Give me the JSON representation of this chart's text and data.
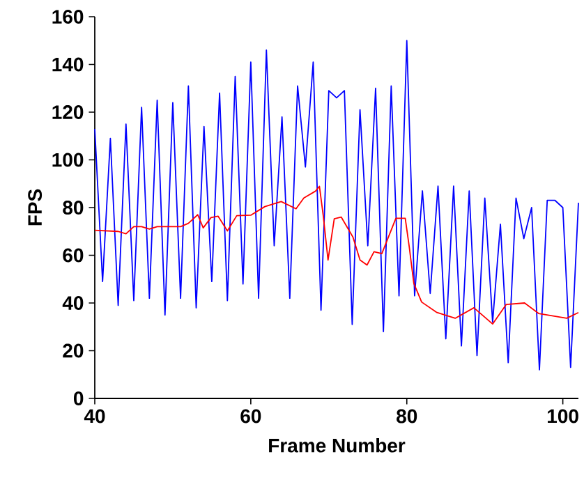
{
  "chart_data": {
    "type": "line",
    "xlabel": "Frame Number",
    "ylabel": "FPS",
    "xlim": [
      40,
      102
    ],
    "ylim": [
      0,
      160
    ],
    "xticks": [
      40,
      60,
      80,
      100
    ],
    "yticks": [
      0,
      20,
      40,
      60,
      80,
      100,
      120,
      140,
      160
    ],
    "marker": "none",
    "line_style": "solid",
    "series": [
      {
        "color": "#0000ff",
        "x": [
          40,
          41,
          42,
          43,
          44,
          45,
          46,
          47,
          48,
          49,
          50,
          51,
          52,
          53,
          54,
          55,
          56,
          57,
          58,
          59,
          60,
          61,
          62,
          63,
          64,
          65,
          66,
          67,
          68,
          69,
          70,
          71,
          72,
          73,
          74,
          75,
          76,
          77,
          78,
          79,
          80,
          81,
          82,
          83,
          84,
          85,
          86,
          87,
          88,
          89,
          90,
          91,
          92,
          93,
          94,
          95,
          96,
          97,
          98,
          99,
          100,
          101,
          102
        ],
        "values": [
          113,
          49,
          109,
          39,
          115,
          41,
          122,
          42,
          125,
          35,
          124,
          42,
          131,
          38,
          114,
          49,
          128,
          41,
          135,
          48,
          141,
          42,
          146,
          64,
          118,
          42,
          131,
          97,
          141,
          37,
          129,
          126,
          129,
          31,
          121,
          64,
          130,
          28,
          131,
          43,
          150,
          43,
          87,
          44,
          89,
          25,
          89,
          22,
          87,
          18,
          84,
          32,
          73,
          15,
          84,
          67,
          80,
          12,
          83,
          83,
          80,
          13,
          82
        ]
      },
      {
        "color": "#ff0000",
        "x": [
          40,
          43,
          44,
          45,
          46,
          47,
          48,
          51,
          52,
          53.2,
          53.9,
          54.9,
          55.8,
          57,
          58.2,
          60,
          61.8,
          63.9,
          65.8,
          66.8,
          68.3,
          68.8,
          69.3,
          69.9,
          70.7,
          71.6,
          73.1,
          74,
          74.9,
          75.8,
          76.8,
          78.6,
          79.8,
          80.3,
          80.9,
          81.9,
          83.8,
          86.2,
          88.6,
          91,
          92.75,
          95.1,
          96.9,
          100.5,
          102
        ],
        "values": [
          70.5,
          70,
          69,
          72,
          72,
          71,
          72,
          72,
          73.4,
          77,
          71.5,
          75.8,
          76.4,
          70.2,
          76.6,
          76.8,
          80.4,
          82.5,
          79.5,
          84,
          86.9,
          88.9,
          76.3,
          58,
          75.3,
          76,
          67.6,
          58,
          55.9,
          61.5,
          60.7,
          75.5,
          75.5,
          63.8,
          48.2,
          40.4,
          36.1,
          33.6,
          38,
          31.2,
          39.4,
          40,
          35.6,
          33.6,
          36
        ]
      }
    ]
  }
}
